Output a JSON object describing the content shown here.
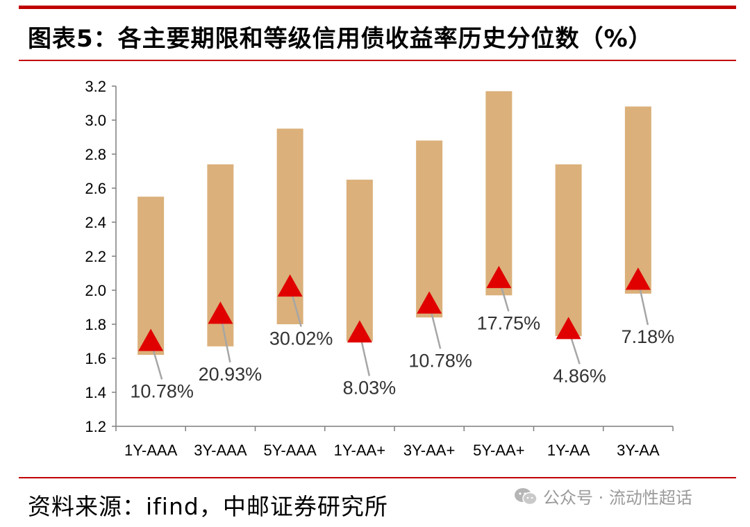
{
  "header": {
    "title": "图表5：各主要期限和等级信用债收益率历史分位数（%）"
  },
  "footer": {
    "source": "资料来源：ifind，中邮证券研究所",
    "watermark": "公众号 · 流动性超话"
  },
  "colors": {
    "bar": "#dbb07a",
    "marker": "#e00000",
    "rule": "#c00000",
    "leader": "#a6a6a6"
  },
  "chart_data": {
    "type": "bar",
    "subtype": "floating-range-with-marker",
    "categories": [
      "1Y-AAA",
      "3Y-AAA",
      "5Y-AAA",
      "1Y-AA+",
      "3Y-AA+",
      "5Y-AA+",
      "1Y-AA",
      "3Y-AA"
    ],
    "series": [
      {
        "values_low": [
          1.62,
          1.67,
          1.8,
          1.7,
          1.84,
          1.97,
          1.73,
          1.98
        ],
        "values_high": [
          2.55,
          2.74,
          2.95,
          2.65,
          2.88,
          3.17,
          2.74,
          3.08
        ]
      },
      {
        "values": [
          1.7,
          1.86,
          2.02,
          1.75,
          1.92,
          2.07,
          1.77,
          2.06
        ]
      }
    ],
    "data_labels": [
      "10.78%",
      "20.93%",
      "30.02%",
      "8.03%",
      "10.78%",
      "17.75%",
      "4.86%",
      "7.18%"
    ],
    "label_positions": [
      1.37,
      1.47,
      1.68,
      1.39,
      1.55,
      1.77,
      1.46,
      1.69
    ],
    "ylim": [
      1.2,
      3.2
    ],
    "yticks": [
      "1.2",
      "1.4",
      "1.6",
      "1.8",
      "2.0",
      "2.2",
      "2.4",
      "2.6",
      "2.8",
      "3.0",
      "3.2"
    ],
    "grid": false,
    "title": "",
    "xlabel": "",
    "ylabel": ""
  }
}
